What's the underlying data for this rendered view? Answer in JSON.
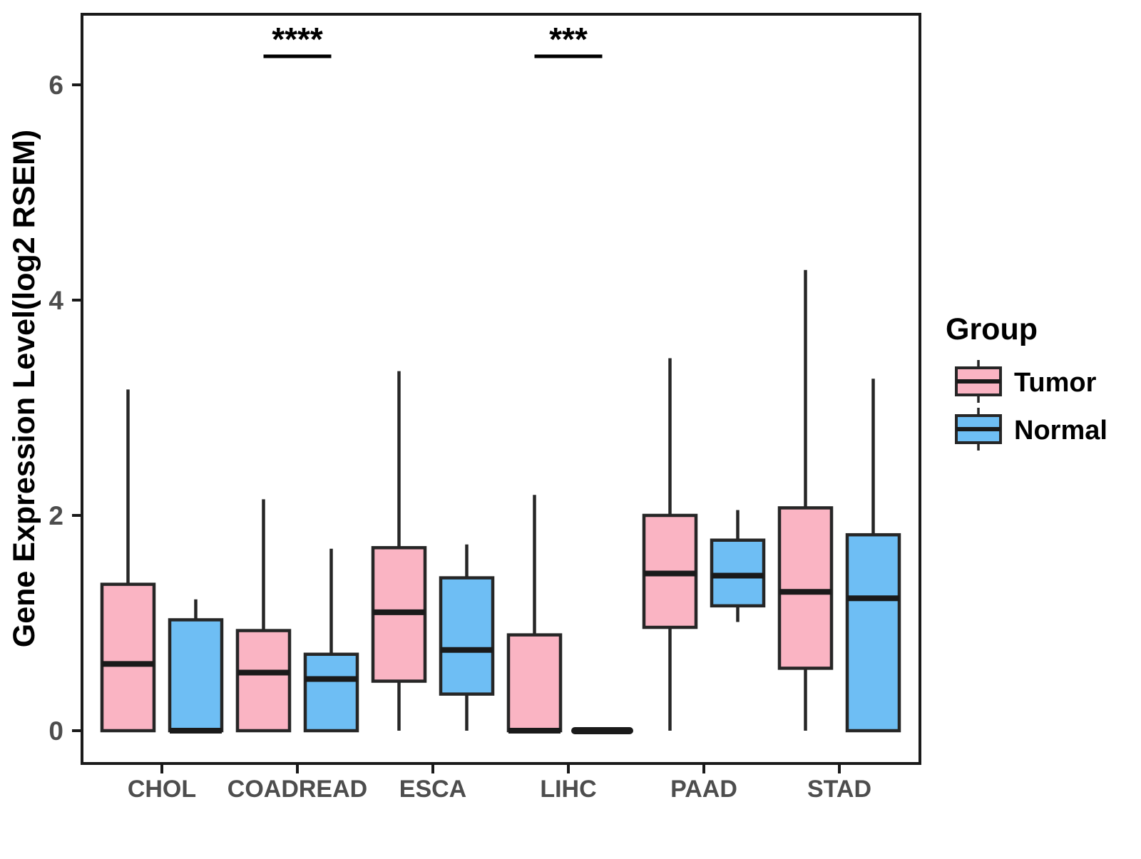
{
  "chart_data": {
    "type": "boxplot",
    "title": "",
    "ylabel": "Gene Expression Level(log2 RSEM)",
    "xlabel": "",
    "yticks": [
      {
        "value": 0,
        "label": "0"
      },
      {
        "value": 2,
        "label": "2"
      },
      {
        "value": 4,
        "label": "4"
      },
      {
        "value": 6,
        "label": "6"
      }
    ],
    "ylim": [
      -0.3,
      6.66
    ],
    "grid": false,
    "categories": [
      "CHOL",
      "COADREAD",
      "ESCA",
      "LIHC",
      "PAAD",
      "STAD"
    ],
    "legend": {
      "title": "Group",
      "position": "right",
      "entries": [
        {
          "label": "Tumor",
          "color": "#FAB4C3"
        },
        {
          "label": "Normal",
          "color": "#6EBEF4"
        }
      ]
    },
    "series": [
      {
        "name": "Tumor",
        "color": "#FAB4C3",
        "boxes": [
          {
            "category": "CHOL",
            "min": 0,
            "q1": 0,
            "median": 0.62,
            "q3": 1.36,
            "max": 3.17
          },
          {
            "category": "COADREAD",
            "min": 0,
            "q1": 0,
            "median": 0.54,
            "q3": 0.93,
            "max": 2.15
          },
          {
            "category": "ESCA",
            "min": 0,
            "q1": 0.46,
            "median": 1.1,
            "q3": 1.7,
            "max": 3.34
          },
          {
            "category": "LIHC",
            "min": 0,
            "q1": 0,
            "median": 0,
            "q3": 0.89,
            "max": 2.19
          },
          {
            "category": "PAAD",
            "min": 0,
            "q1": 0.96,
            "median": 1.46,
            "q3": 2.0,
            "max": 3.46
          },
          {
            "category": "STAD",
            "min": 0,
            "q1": 0.58,
            "median": 1.29,
            "q3": 2.07,
            "max": 4.28
          }
        ]
      },
      {
        "name": "Normal",
        "color": "#6EBEF4",
        "boxes": [
          {
            "category": "CHOL",
            "min": 0,
            "q1": 0,
            "median": 0,
            "q3": 1.03,
            "max": 1.22
          },
          {
            "category": "COADREAD",
            "min": 0,
            "q1": 0,
            "median": 0.48,
            "q3": 0.71,
            "max": 1.69
          },
          {
            "category": "ESCA",
            "min": 0,
            "q1": 0.34,
            "median": 0.75,
            "q3": 1.42,
            "max": 1.73
          },
          {
            "category": "LIHC",
            "min": 0,
            "q1": 0,
            "median": 0,
            "q3": 0,
            "max": 0
          },
          {
            "category": "PAAD",
            "min": 1.01,
            "q1": 1.16,
            "median": 1.44,
            "q3": 1.77,
            "max": 2.05
          },
          {
            "category": "STAD",
            "min": 0,
            "q1": 0,
            "median": 1.23,
            "q3": 1.82,
            "max": 3.27
          }
        ]
      }
    ],
    "annotations": [
      {
        "category": "COADREAD",
        "label": "****"
      },
      {
        "category": "LIHC",
        "label": "***"
      }
    ],
    "colors": {
      "tumor": "#FAB4C3",
      "normal": "#6EBEF4",
      "box_border": "#262626",
      "median_line": "#1A1A1A",
      "panel_border": "#1A1A1A",
      "axis_text": "#4D4D4D",
      "annotation": "#000000"
    }
  }
}
